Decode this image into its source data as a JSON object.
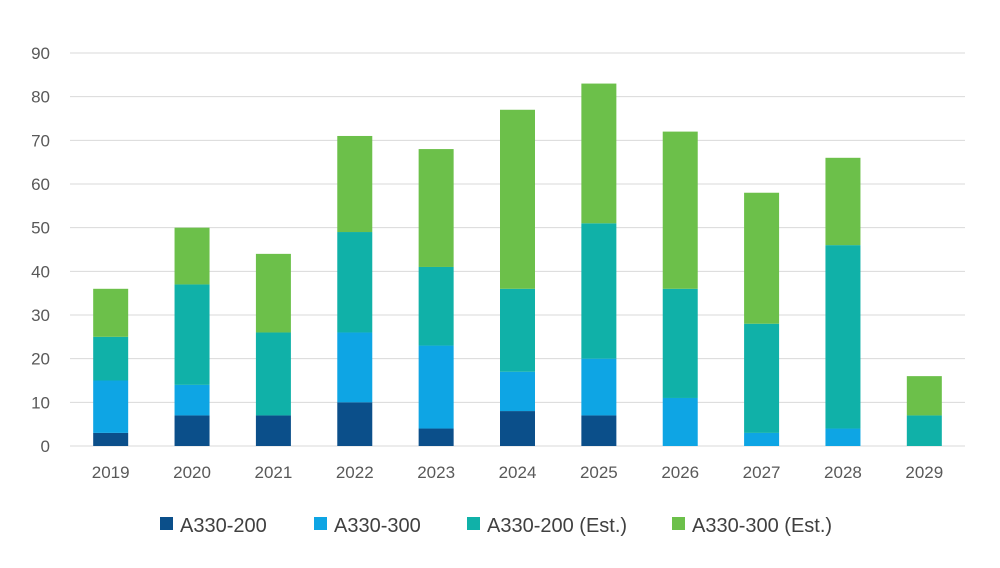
{
  "chart_data": {
    "type": "bar",
    "stacked": true,
    "categories": [
      "2019",
      "2020",
      "2021",
      "2022",
      "2023",
      "2024",
      "2025",
      "2026",
      "2027",
      "2028",
      "2029"
    ],
    "series": [
      {
        "name": "A330-200",
        "color": "#0b4f8a",
        "values": [
          3,
          7,
          7,
          10,
          4,
          8,
          7,
          0,
          0,
          0,
          0
        ]
      },
      {
        "name": "A330-300",
        "color": "#0ea5e4",
        "values": [
          12,
          7,
          0,
          16,
          19,
          9,
          13,
          11,
          3,
          4,
          0
        ]
      },
      {
        "name": "A330-200 (Est.)",
        "color": "#10b1a8",
        "values": [
          10,
          23,
          19,
          23,
          18,
          19,
          31,
          25,
          25,
          42,
          7
        ]
      },
      {
        "name": "A330-300 (Est.)",
        "color": "#6cc04a",
        "values": [
          11,
          13,
          18,
          22,
          27,
          41,
          32,
          36,
          30,
          20,
          9
        ]
      }
    ],
    "ylim": [
      0,
      90
    ],
    "yticks": [
      0,
      10,
      20,
      30,
      40,
      50,
      60,
      70,
      80,
      90
    ],
    "grid": true,
    "legend_position": "bottom",
    "title": "",
    "xlabel": "",
    "ylabel": ""
  }
}
